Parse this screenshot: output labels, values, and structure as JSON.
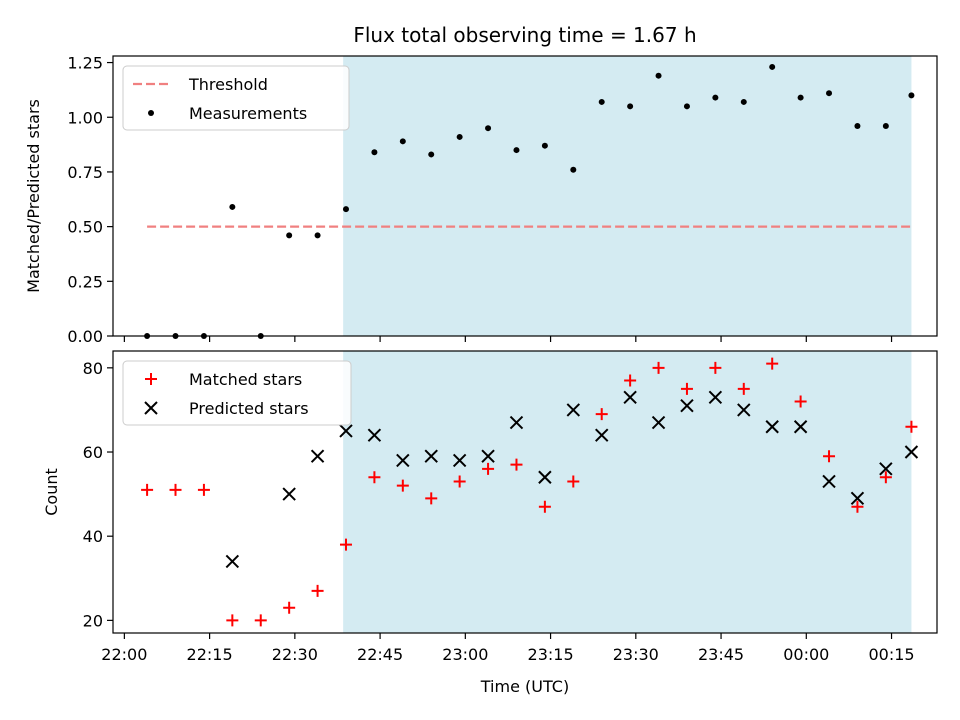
{
  "chart_data": [
    {
      "type": "scatter",
      "title": "Flux total observing time = 1.67 h",
      "xlabel": "",
      "ylabel": "Matched/Predicted stars",
      "ylim": [
        0,
        1.28
      ],
      "yticks": [
        0,
        0.25,
        0.5,
        0.75,
        1.0,
        1.25
      ],
      "ytick_labels": [
        "0.00",
        "0.25",
        "0.50",
        "0.75",
        "1.00",
        "1.25"
      ],
      "xlim_minutes": [
        -2,
        143
      ],
      "xticks_minutes": [
        0,
        15,
        30,
        45,
        60,
        75,
        90,
        105,
        120,
        135
      ],
      "shaded_region_minutes": [
        38.5,
        138.5
      ],
      "shade_color": "#d4ebf2",
      "grid": false,
      "legend_position": "upper-left",
      "legend": [
        "Threshold",
        "Measurements"
      ],
      "threshold": {
        "name": "Threshold",
        "y": 0.5,
        "x_range_minutes": [
          4,
          138.5
        ],
        "color": "#f08080",
        "style": "dashed"
      },
      "series": [
        {
          "name": "Measurements",
          "marker": "dot",
          "color": "#000000",
          "x_minutes": [
            4,
            9,
            14,
            19,
            24,
            29,
            34,
            39,
            44,
            49,
            54,
            59,
            64,
            69,
            74,
            79,
            84,
            89,
            94,
            99,
            104,
            109,
            114,
            119,
            124,
            129,
            134,
            138.5
          ],
          "y": [
            0,
            0,
            0,
            0.59,
            0,
            0.46,
            0.46,
            0.58,
            0.84,
            0.89,
            0.83,
            0.91,
            0.95,
            0.85,
            0.87,
            0.76,
            1.07,
            1.05,
            1.19,
            1.05,
            1.09,
            1.07,
            1.23,
            1.09,
            1.11,
            0.96,
            0.96,
            1.1
          ]
        }
      ]
    },
    {
      "type": "scatter",
      "title": "",
      "xlabel": "Time (UTC)",
      "ylabel": "Count",
      "ylim": [
        17,
        84
      ],
      "yticks": [
        20,
        40,
        60,
        80
      ],
      "ytick_labels": [
        "20",
        "40",
        "60",
        "80"
      ],
      "xlim_minutes": [
        -2,
        143
      ],
      "xticks_minutes": [
        0,
        15,
        30,
        45,
        60,
        75,
        90,
        105,
        120,
        135
      ],
      "xtick_labels": [
        "22:00",
        "22:15",
        "22:30",
        "22:45",
        "23:00",
        "23:15",
        "23:30",
        "23:45",
        "00:00",
        "00:15"
      ],
      "shaded_region_minutes": [
        38.5,
        138.5
      ],
      "shade_color": "#d4ebf2",
      "grid": false,
      "legend_position": "upper-left",
      "legend": [
        "Matched stars",
        "Predicted stars"
      ],
      "series": [
        {
          "name": "Matched stars",
          "marker": "plus",
          "color": "#ff0000",
          "x_minutes": [
            4,
            9,
            14,
            19,
            24,
            29,
            34,
            39,
            44,
            49,
            54,
            59,
            64,
            69,
            74,
            79,
            84,
            89,
            94,
            99,
            104,
            109,
            114,
            119,
            124,
            129,
            134,
            138.5
          ],
          "y": [
            51,
            51,
            51,
            20,
            20,
            23,
            27,
            38,
            54,
            52,
            49,
            53,
            56,
            57,
            47,
            53,
            69,
            77,
            80,
            75,
            80,
            75,
            81,
            72,
            59,
            47,
            54,
            66
          ]
        },
        {
          "name": "Predicted stars",
          "marker": "x",
          "color": "#000000",
          "x_minutes": [
            19,
            29,
            34,
            39,
            44,
            49,
            54,
            59,
            64,
            69,
            74,
            79,
            84,
            89,
            94,
            99,
            104,
            109,
            114,
            119,
            124,
            129,
            134,
            138.5
          ],
          "y": [
            34,
            50,
            59,
            65,
            64,
            58,
            59,
            58,
            59,
            67,
            54,
            70,
            64,
            73,
            67,
            71,
            73,
            70,
            66,
            66,
            53,
            49,
            56,
            60
          ]
        }
      ]
    }
  ]
}
